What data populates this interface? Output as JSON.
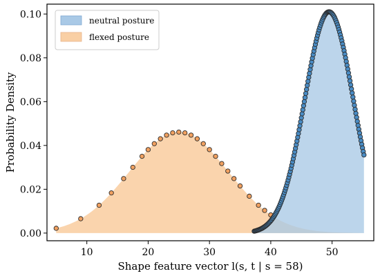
{
  "chart_data": {
    "type": "area",
    "title": "",
    "xlabel": "Shape feature vector l(s, t | s = 58)",
    "ylabel": "Probability Density",
    "xlim": [
      3.5,
      56.8
    ],
    "ylim": [
      -0.0035,
      0.1045
    ],
    "xticks": [
      10,
      20,
      30,
      40,
      50
    ],
    "yticks": [
      0.0,
      0.02,
      0.04,
      0.06,
      0.08,
      0.1
    ],
    "ytick_labels": [
      "0.00",
      "0.02",
      "0.04",
      "0.06",
      "0.08",
      "0.10"
    ],
    "grid": false,
    "legend_placement": "top-left",
    "series": [
      {
        "name": "neutral posture",
        "color": "#a9c9e6",
        "marker_color": "#4a8cc4",
        "curve": {
          "mean": 49.5,
          "std": 3.95,
          "peak": 0.101,
          "x_range": [
            37,
            55.2
          ]
        },
        "points": {
          "x_range": [
            37.3,
            55.2
          ],
          "count": 150
        }
      },
      {
        "name": "flexed posture",
        "color": "#f9cfa4",
        "marker_color": "#f0a060",
        "curve": {
          "mean": 25,
          "std": 8.1,
          "peak": 0.0461,
          "x_range": [
            5,
            55.2
          ]
        },
        "points": {
          "x": [
            5,
            9,
            12,
            14,
            16,
            17.5,
            19,
            20,
            21,
            22,
            23,
            24,
            25,
            26,
            27,
            28,
            29,
            30,
            31,
            32,
            33,
            34,
            35,
            36.5,
            38,
            39,
            40
          ],
          "count": 27
        }
      }
    ]
  }
}
